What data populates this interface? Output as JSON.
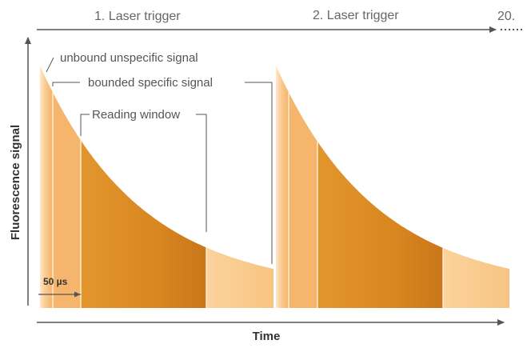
{
  "triggers": {
    "first": "1. Laser trigger",
    "second": "2. Laser trigger",
    "last": "20."
  },
  "annotations": {
    "unbound": "unbound unspecific signal",
    "bounded": "bounded specific signal",
    "reading_window": "Reading window",
    "delay": "50 µs"
  },
  "axes": {
    "x_label": "Time",
    "y_label": "Fluorescence signal"
  },
  "colors": {
    "light_fill": "#f6b36a",
    "dark_fill": "#d7821c",
    "axis": "#555555"
  }
}
